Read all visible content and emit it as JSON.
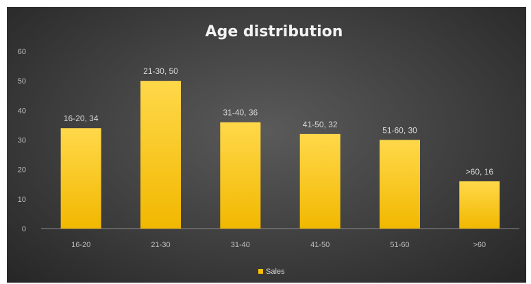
{
  "chart_data": {
    "type": "bar",
    "title": "Age distribution",
    "xlabel": "",
    "ylabel": "",
    "categories": [
      "16-20",
      "21-30",
      "31-40",
      "41-50",
      "51-60",
      ">60"
    ],
    "series": [
      {
        "name": "Sales",
        "values": [
          34,
          50,
          36,
          32,
          30,
          16
        ],
        "data_labels": [
          "16-20, 34",
          "21-30, 50",
          "31-40, 36",
          "41-50, 32",
          "51-60, 30",
          ">60, 16"
        ]
      }
    ],
    "ylim": [
      0,
      60
    ],
    "yticks": [
      "0",
      "10",
      "20",
      "30",
      "40",
      "50",
      "60"
    ],
    "grid": false,
    "legend_position": "bottom",
    "colors": {
      "bar_top": "#ffd84a",
      "bar_bottom": "#f2b800",
      "legend_swatch": "#ffc000"
    }
  }
}
